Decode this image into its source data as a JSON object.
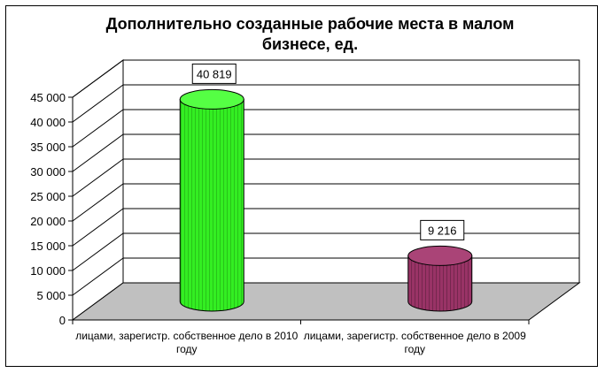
{
  "chart_data": {
    "type": "bar",
    "style": "3d-cylinder",
    "title": "Дополнительно созданные рабочие места в малом бизнесе, ед.",
    "categories": [
      [
        "лицами, зарегистр. собственное дело в 2010",
        "году"
      ],
      [
        "лицами, зарегистр. собственное дело в 2009",
        "году"
      ]
    ],
    "series": [
      {
        "values": [
          40819,
          9216
        ],
        "value_labels": [
          "40 819",
          "9 216"
        ],
        "colors": [
          "#33ee22",
          "#993366"
        ]
      }
    ],
    "yticks": [
      "0",
      "5 000",
      "10 000",
      "15 000",
      "20 000",
      "25 000",
      "30 000",
      "35 000",
      "40 000",
      "45 000"
    ],
    "ylim": [
      0,
      45000
    ],
    "grid": true,
    "legend": "none"
  }
}
